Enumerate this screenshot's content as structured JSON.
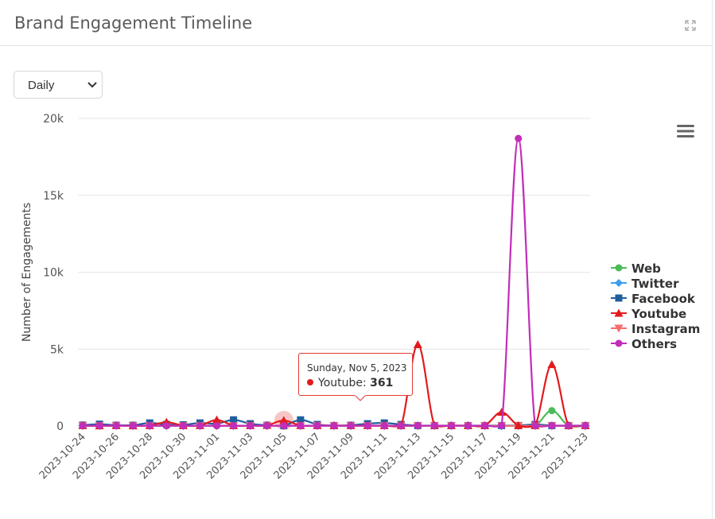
{
  "card": {
    "title": "Brand Engagement Timeline"
  },
  "icons": {
    "expand": "expand-icon",
    "menu": "hamburger-menu-icon",
    "chevron": "chevron-down-icon"
  },
  "controls": {
    "period_select": "Daily"
  },
  "tooltip": {
    "date": "Sunday, Nov 5, 2023",
    "series": "Youtube",
    "separator": ": ",
    "value": "361",
    "color": "#e31a1c"
  },
  "chart_data": {
    "type": "line",
    "ylabel": "Number of Engagements",
    "xlabel": "",
    "ylim": [
      0,
      20000
    ],
    "yticks": [
      0,
      5000,
      10000,
      15000,
      20000
    ],
    "ytick_labels": [
      "0",
      "5k",
      "10k",
      "15k",
      "20k"
    ],
    "grid": true,
    "legend_position": "right",
    "x": [
      "2023-10-24",
      "2023-10-25",
      "2023-10-26",
      "2023-10-27",
      "2023-10-28",
      "2023-10-29",
      "2023-10-30",
      "2023-10-31",
      "2023-11-01",
      "2023-11-02",
      "2023-11-03",
      "2023-11-04",
      "2023-11-05",
      "2023-11-06",
      "2023-11-07",
      "2023-11-08",
      "2023-11-09",
      "2023-11-10",
      "2023-11-11",
      "2023-11-12",
      "2023-11-13",
      "2023-11-14",
      "2023-11-15",
      "2023-11-16",
      "2023-11-17",
      "2023-11-18",
      "2023-11-19",
      "2023-11-20",
      "2023-11-21",
      "2023-11-22",
      "2023-11-23"
    ],
    "xtick_labels": [
      "2023-10-24",
      "2023-10-26",
      "2023-10-28",
      "2023-10-30",
      "2023-11-01",
      "2023-11-03",
      "2023-11-05",
      "2023-11-07",
      "2023-11-09",
      "2023-11-11",
      "2023-11-13",
      "2023-11-15",
      "2023-11-17",
      "2023-11-19",
      "2023-11-21",
      "2023-11-23"
    ],
    "series": [
      {
        "name": "Web",
        "color": "#4cbb58",
        "marker": "circle",
        "values": [
          10,
          10,
          20,
          30,
          10,
          10,
          10,
          10,
          10,
          10,
          20,
          10,
          10,
          10,
          10,
          10,
          10,
          10,
          10,
          10,
          10,
          10,
          10,
          10,
          10,
          10,
          10,
          10,
          1000,
          10,
          10
        ]
      },
      {
        "name": "Twitter",
        "color": "#3b9ef0",
        "marker": "diamond",
        "values": [
          20,
          20,
          30,
          20,
          20,
          20,
          20,
          20,
          20,
          20,
          20,
          20,
          20,
          20,
          20,
          20,
          20,
          20,
          20,
          20,
          20,
          20,
          20,
          20,
          20,
          20,
          20,
          20,
          20,
          20,
          20
        ]
      },
      {
        "name": "Facebook",
        "color": "#1f5f9e",
        "marker": "square",
        "values": [
          60,
          120,
          50,
          50,
          200,
          100,
          80,
          200,
          150,
          400,
          150,
          50,
          30,
          400,
          100,
          30,
          50,
          150,
          200,
          100,
          30,
          30,
          30,
          30,
          30,
          30,
          30,
          100,
          30,
          30,
          30
        ]
      },
      {
        "name": "Youtube",
        "color": "#e31a1c",
        "marker": "triangle",
        "values": [
          30,
          20,
          30,
          20,
          30,
          250,
          30,
          30,
          400,
          30,
          30,
          50,
          361,
          30,
          30,
          30,
          30,
          30,
          30,
          30,
          5300,
          30,
          30,
          30,
          30,
          900,
          30,
          30,
          4000,
          30,
          30
        ]
      },
      {
        "name": "Instagram",
        "color": "#f66d6d",
        "marker": "triangle-down",
        "values": [
          10,
          10,
          10,
          10,
          10,
          10,
          10,
          10,
          10,
          10,
          10,
          10,
          10,
          10,
          10,
          10,
          10,
          10,
          10,
          10,
          10,
          10,
          10,
          10,
          10,
          10,
          10,
          10,
          10,
          10,
          10
        ]
      },
      {
        "name": "Others",
        "color": "#c22db9",
        "marker": "circle",
        "values": [
          20,
          20,
          20,
          20,
          20,
          20,
          20,
          20,
          20,
          20,
          20,
          20,
          20,
          20,
          20,
          20,
          20,
          20,
          20,
          20,
          20,
          20,
          20,
          20,
          20,
          20,
          18700,
          20,
          20,
          20,
          20
        ]
      }
    ]
  }
}
